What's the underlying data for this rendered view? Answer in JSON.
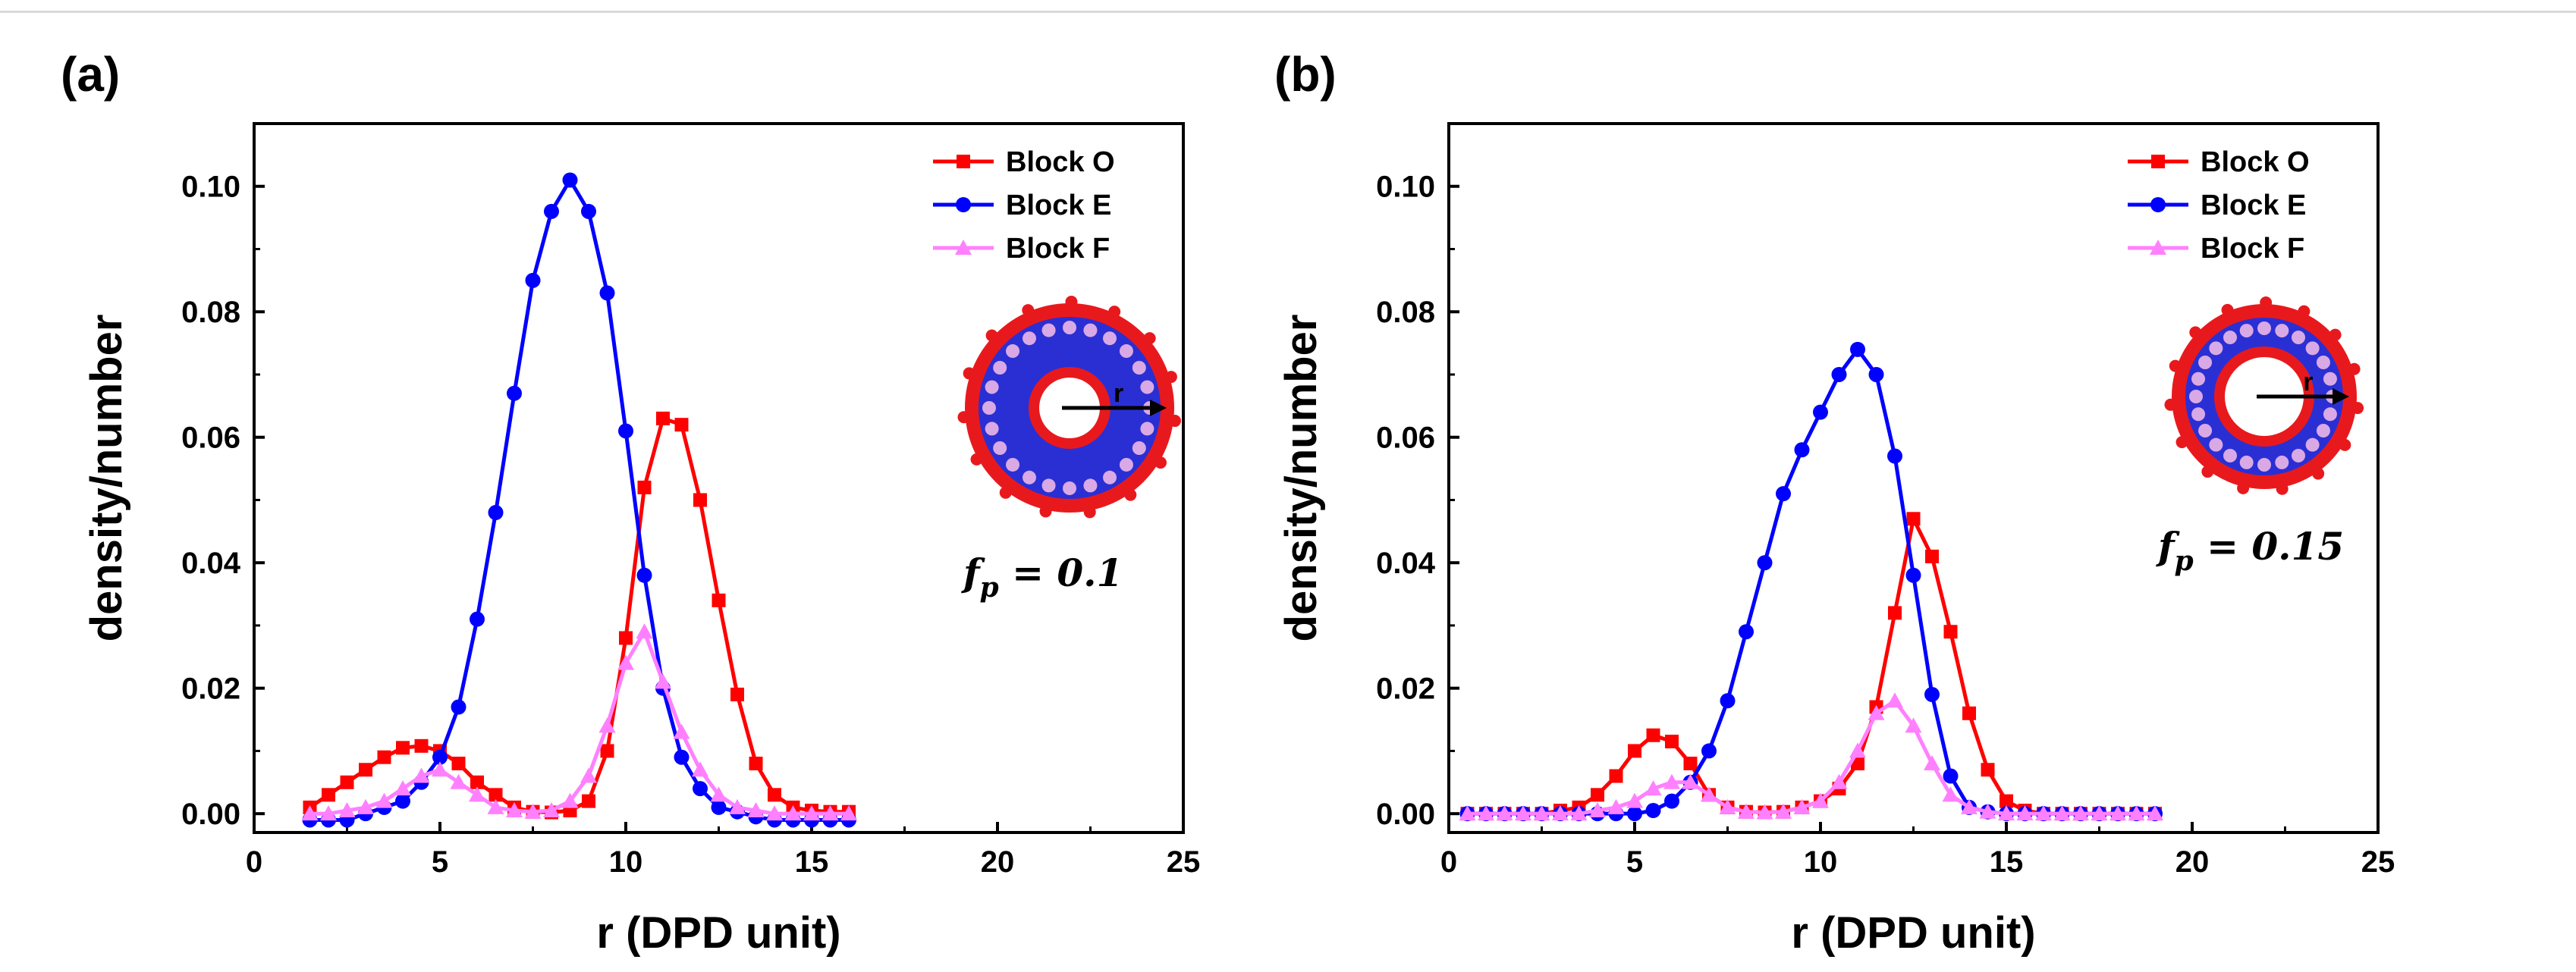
{
  "chart_data": [
    {
      "type": "line",
      "panel_label": "(a)",
      "xlabel": "r (DPD unit)",
      "ylabel": "density/number",
      "xlim": [
        0,
        25
      ],
      "ylim": [
        -0.003,
        0.11
      ],
      "xticks": [
        0,
        5,
        10,
        15,
        20,
        25
      ],
      "yticks": [
        "0.00",
        "0.02",
        "0.04",
        "0.06",
        "0.08",
        "0.10"
      ],
      "ytick_values": [
        0,
        0.02,
        0.04,
        0.06,
        0.08,
        0.1
      ],
      "legend_position": "top-right",
      "annotation": {
        "f": "f",
        "sub": "p",
        "rest": " = 0.1"
      },
      "inset": {
        "description_label": "r",
        "colors": [
          "#e8191d",
          "#2a2fd4",
          "#d9a9e6"
        ]
      },
      "series": [
        {
          "name": "Block O",
          "color": "#ff0000",
          "marker": "square",
          "x": [
            1.5,
            2.0,
            2.5,
            3.0,
            3.5,
            4.0,
            4.5,
            5.0,
            5.5,
            6.0,
            6.5,
            7.0,
            7.5,
            8.0,
            8.5,
            9.0,
            9.5,
            10.0,
            10.5,
            11.0,
            11.5,
            12.0,
            12.5,
            13.0,
            13.5,
            14.0,
            14.5,
            15.0,
            15.5,
            16.0
          ],
          "y": [
            0.001,
            0.003,
            0.005,
            0.007,
            0.009,
            0.0105,
            0.0108,
            0.01,
            0.008,
            0.005,
            0.003,
            0.001,
            0.0003,
            0.0002,
            0.0005,
            0.002,
            0.01,
            0.028,
            0.052,
            0.063,
            0.062,
            0.05,
            0.034,
            0.019,
            0.008,
            0.003,
            0.001,
            0.0005,
            0.0003,
            0.0003
          ]
        },
        {
          "name": "Block E",
          "color": "#0000ff",
          "marker": "circle",
          "x": [
            1.5,
            2.0,
            2.5,
            3.0,
            3.5,
            4.0,
            4.5,
            5.0,
            5.5,
            6.0,
            6.5,
            7.0,
            7.5,
            8.0,
            8.5,
            9.0,
            9.5,
            10.0,
            10.5,
            11.0,
            11.5,
            12.0,
            12.5,
            13.0,
            13.5,
            14.0,
            14.5,
            15.0,
            15.5,
            16.0
          ],
          "y": [
            -0.001,
            -0.001,
            -0.001,
            0.0,
            0.001,
            0.002,
            0.005,
            0.009,
            0.017,
            0.031,
            0.048,
            0.067,
            0.085,
            0.096,
            0.101,
            0.096,
            0.083,
            0.061,
            0.038,
            0.02,
            0.009,
            0.004,
            0.001,
            0.0003,
            -0.0005,
            -0.001,
            -0.001,
            -0.001,
            -0.001,
            -0.001
          ]
        },
        {
          "name": "Block F",
          "color": "#ff80ff",
          "marker": "triangle",
          "x": [
            1.5,
            2.0,
            2.5,
            3.0,
            3.5,
            4.0,
            4.5,
            5.0,
            5.5,
            6.0,
            6.5,
            7.0,
            7.5,
            8.0,
            8.5,
            9.0,
            9.5,
            10.0,
            10.5,
            11.0,
            11.5,
            12.0,
            12.5,
            13.0,
            13.5,
            14.0,
            14.5,
            15.0,
            15.5,
            16.0
          ],
          "y": [
            0.0,
            0.0,
            0.0005,
            0.001,
            0.002,
            0.004,
            0.006,
            0.007,
            0.005,
            0.003,
            0.001,
            0.0005,
            0.0003,
            0.0005,
            0.002,
            0.006,
            0.014,
            0.024,
            0.029,
            0.021,
            0.013,
            0.007,
            0.003,
            0.001,
            0.0005,
            0.0,
            0.0,
            0.0,
            0.0,
            0.0
          ]
        }
      ]
    },
    {
      "type": "line",
      "panel_label": "(b)",
      "xlabel": "r (DPD unit)",
      "ylabel": "density/number",
      "xlim": [
        0,
        25
      ],
      "ylim": [
        -0.003,
        0.11
      ],
      "xticks": [
        0,
        5,
        10,
        15,
        20,
        25
      ],
      "yticks": [
        "0.00",
        "0.02",
        "0.04",
        "0.06",
        "0.08",
        "0.10"
      ],
      "ytick_values": [
        0,
        0.02,
        0.04,
        0.06,
        0.08,
        0.1
      ],
      "legend_position": "top-right",
      "annotation": {
        "f": "f",
        "sub": "p",
        "rest": " = 0.15"
      },
      "inset": {
        "description_label": "r",
        "colors": [
          "#e8191d",
          "#2a2fd4",
          "#d9a9e6"
        ]
      },
      "series": [
        {
          "name": "Block O",
          "color": "#ff0000",
          "marker": "square",
          "x": [
            0.5,
            1.0,
            1.5,
            2.0,
            2.5,
            3.0,
            3.5,
            4.0,
            4.5,
            5.0,
            5.5,
            6.0,
            6.5,
            7.0,
            7.5,
            8.0,
            8.5,
            9.0,
            9.5,
            10.0,
            10.5,
            11.0,
            11.5,
            12.0,
            12.5,
            13.0,
            13.5,
            14.0,
            14.5,
            15.0,
            15.5,
            16.0,
            16.5,
            17.0,
            17.5,
            18.0,
            18.5,
            19.0
          ],
          "y": [
            0,
            0,
            0,
            0,
            0,
            0.0005,
            0.001,
            0.003,
            0.006,
            0.01,
            0.0125,
            0.0115,
            0.008,
            0.003,
            0.001,
            0.0003,
            0.0002,
            0.0003,
            0.001,
            0.002,
            0.004,
            0.008,
            0.017,
            0.032,
            0.047,
            0.041,
            0.029,
            0.016,
            0.007,
            0.002,
            0.0005,
            0,
            0,
            0,
            0,
            0,
            0,
            0
          ]
        },
        {
          "name": "Block E",
          "color": "#0000ff",
          "marker": "circle",
          "x": [
            0.5,
            1.0,
            1.5,
            2.0,
            2.5,
            3.0,
            3.5,
            4.0,
            4.5,
            5.0,
            5.5,
            6.0,
            6.5,
            7.0,
            7.5,
            8.0,
            8.5,
            9.0,
            9.5,
            10.0,
            10.5,
            11.0,
            11.5,
            12.0,
            12.5,
            13.0,
            13.5,
            14.0,
            14.5,
            15.0,
            15.5,
            16.0,
            16.5,
            17.0,
            17.5,
            18.0,
            18.5,
            19.0
          ],
          "y": [
            0,
            0,
            0,
            0,
            0,
            0,
            0,
            0,
            0,
            0,
            0.0005,
            0.002,
            0.005,
            0.01,
            0.018,
            0.029,
            0.04,
            0.051,
            0.058,
            0.064,
            0.07,
            0.074,
            0.07,
            0.057,
            0.038,
            0.019,
            0.006,
            0.001,
            0.0003,
            0,
            0,
            0,
            0,
            0,
            0,
            0,
            0,
            0
          ]
        },
        {
          "name": "Block F",
          "color": "#ff80ff",
          "marker": "triangle",
          "x": [
            0.5,
            1.0,
            1.5,
            2.0,
            2.5,
            3.0,
            3.5,
            4.0,
            4.5,
            5.0,
            5.5,
            6.0,
            6.5,
            7.0,
            7.5,
            8.0,
            8.5,
            9.0,
            9.5,
            10.0,
            10.5,
            11.0,
            11.5,
            12.0,
            12.5,
            13.0,
            13.5,
            14.0,
            14.5,
            15.0,
            15.5,
            16.0,
            16.5,
            17.0,
            17.5,
            18.0,
            18.5,
            19.0
          ],
          "y": [
            0,
            0,
            0,
            0,
            0,
            0,
            0,
            0.0005,
            0.001,
            0.002,
            0.004,
            0.005,
            0.005,
            0.003,
            0.001,
            0.0003,
            0.0002,
            0.0003,
            0.001,
            0.002,
            0.005,
            0.01,
            0.016,
            0.018,
            0.014,
            0.008,
            0.003,
            0.001,
            0.0003,
            0,
            0,
            0,
            0,
            0,
            0,
            0,
            0,
            0
          ]
        }
      ]
    }
  ]
}
